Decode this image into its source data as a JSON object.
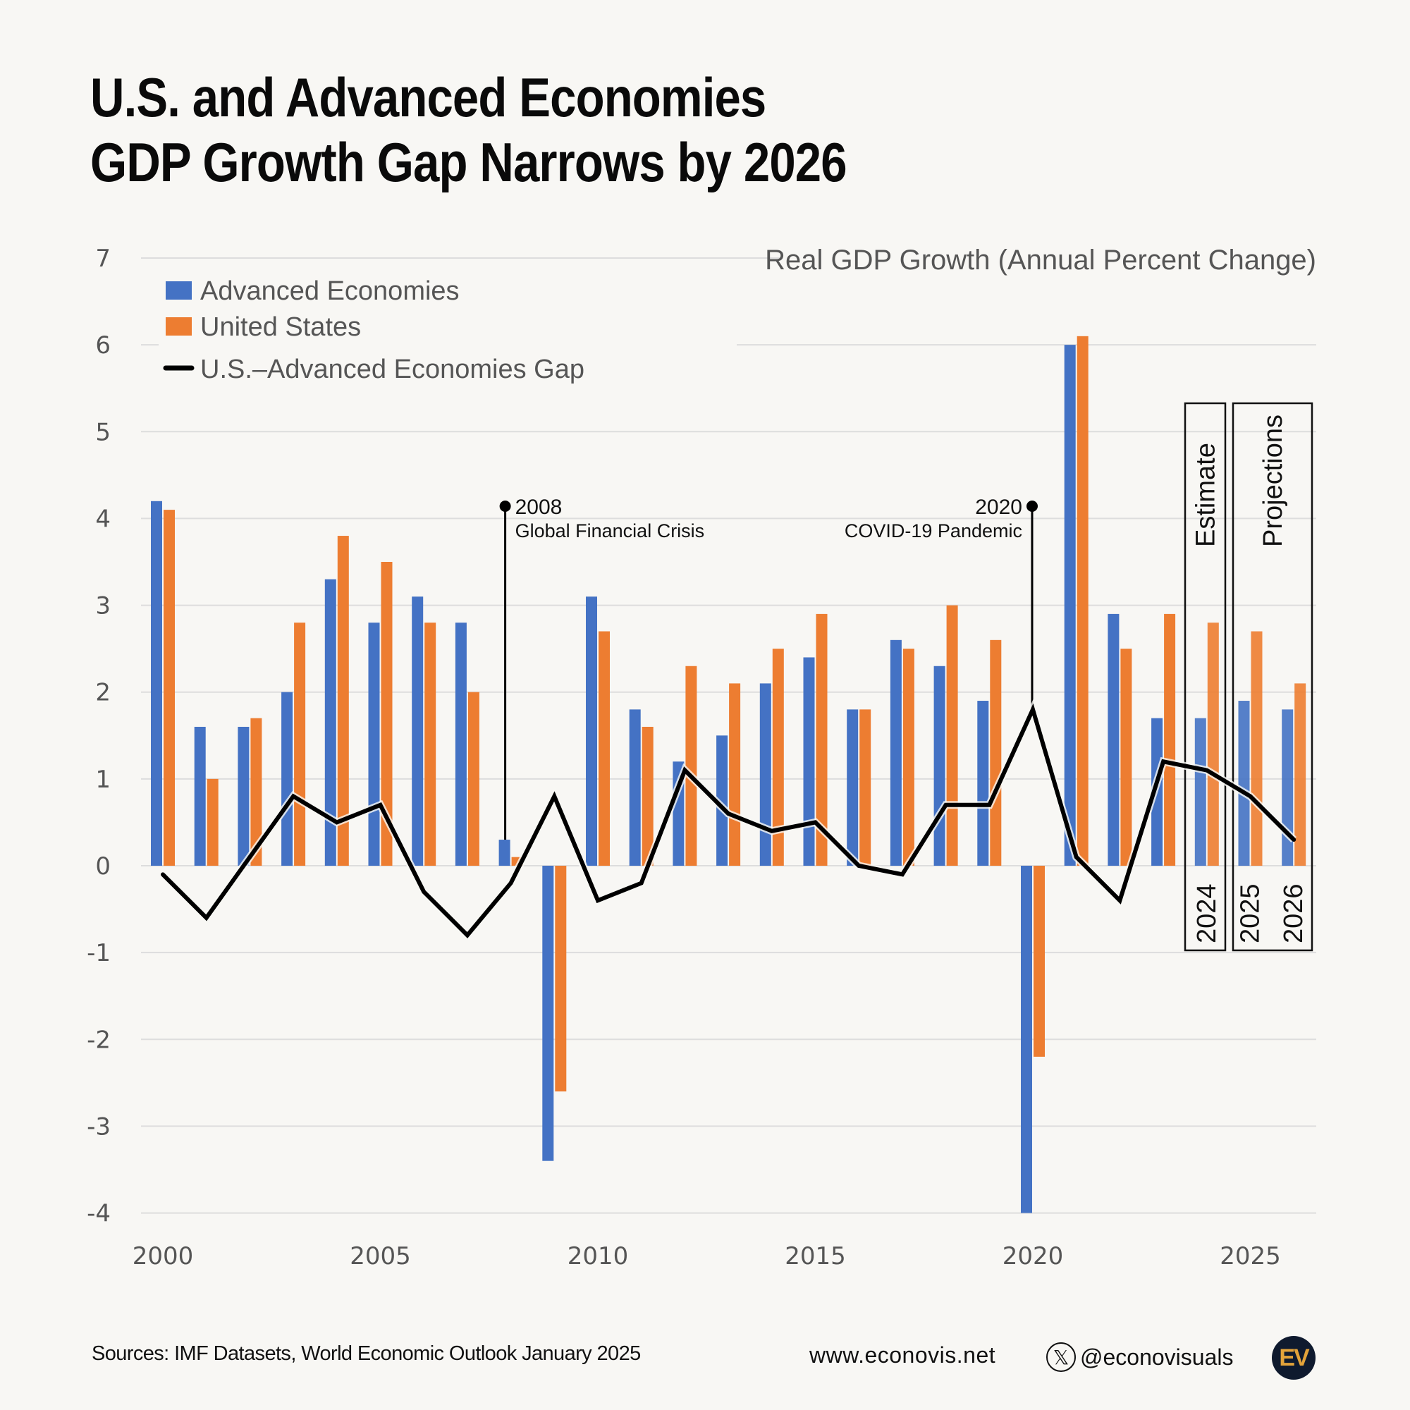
{
  "title": {
    "line1": "U.S. and Advanced Economies",
    "line2": "GDP Growth Gap Narrows by 2026"
  },
  "colors": {
    "advanced_economies": "#4472c4",
    "united_states": "#ed7d31",
    "gap_line": "#000000",
    "grid": "#dddddd",
    "background": "#f8f7f4",
    "logo_bg": "#0f1a2e",
    "logo_fg": "#e3a33a"
  },
  "chart_data": {
    "type": "bar",
    "title": "U.S. and Advanced Economies GDP Growth Gap Narrows by 2026",
    "ylabel": "Real GDP Growth (Annual Percent Change)",
    "xlabel": "",
    "ylim": [
      -4,
      7
    ],
    "yticks": [
      7,
      6,
      5,
      4,
      3,
      2,
      1,
      0,
      -1,
      -2,
      -3,
      -4
    ],
    "xticks": [
      "2000",
      "2005",
      "2010",
      "2015",
      "2020",
      "2025"
    ],
    "grid": true,
    "legend_position": "top-left",
    "categories": [
      2000,
      2001,
      2002,
      2003,
      2004,
      2005,
      2006,
      2007,
      2008,
      2009,
      2010,
      2011,
      2012,
      2013,
      2014,
      2015,
      2016,
      2017,
      2018,
      2019,
      2020,
      2021,
      2022,
      2023,
      2024,
      2025,
      2026
    ],
    "series": [
      {
        "name": "Advanced Economies",
        "type": "bar",
        "values": [
          4.2,
          1.6,
          1.6,
          2.0,
          3.3,
          2.8,
          3.1,
          2.8,
          0.3,
          -3.4,
          3.1,
          1.8,
          1.2,
          1.5,
          2.1,
          2.4,
          1.8,
          2.6,
          2.3,
          1.9,
          -4.0,
          6.0,
          2.9,
          1.7,
          1.7,
          1.9,
          1.8
        ]
      },
      {
        "name": "United States",
        "type": "bar",
        "values": [
          4.1,
          1.0,
          1.7,
          2.8,
          3.8,
          3.5,
          2.8,
          2.0,
          0.1,
          -2.6,
          2.7,
          1.6,
          2.3,
          2.1,
          2.5,
          2.9,
          1.8,
          2.5,
          3.0,
          2.6,
          -2.2,
          6.1,
          2.5,
          2.9,
          2.8,
          2.7,
          2.1
        ]
      },
      {
        "name": "U.S.–Advanced Economies Gap",
        "type": "line",
        "values": [
          -0.1,
          -0.6,
          0.1,
          0.8,
          0.5,
          0.7,
          -0.3,
          -0.8,
          -0.2,
          0.8,
          -0.4,
          -0.2,
          1.1,
          0.6,
          0.4,
          0.5,
          0.0,
          -0.1,
          0.7,
          0.7,
          1.8,
          0.1,
          -0.4,
          1.2,
          1.1,
          0.8,
          0.3
        ]
      }
    ],
    "annotations": [
      {
        "year": 2008,
        "label": "2008",
        "text": "Global Financial Crisis",
        "side": "right"
      },
      {
        "year": 2020,
        "label": "2020",
        "text": "COVID-19 Pandemic",
        "side": "left"
      }
    ],
    "periods": [
      {
        "label": "Estimate",
        "years": [
          "2024"
        ]
      },
      {
        "label": "Projections",
        "years": [
          "2025",
          "2026"
        ]
      }
    ]
  },
  "legend": [
    {
      "label": "Advanced Economies",
      "kind": "square"
    },
    {
      "label": "United States",
      "kind": "square"
    },
    {
      "label": "U.S.–Advanced Economies Gap",
      "kind": "line"
    }
  ],
  "footer": {
    "sources": "Sources: IMF Datasets, World Economic Outlook January 2025",
    "website": "www.econovis.net",
    "x_icon": "x-logo-icon",
    "x_glyph": "𝕏",
    "handle": "@econovisuals",
    "logo_text": "EV"
  }
}
